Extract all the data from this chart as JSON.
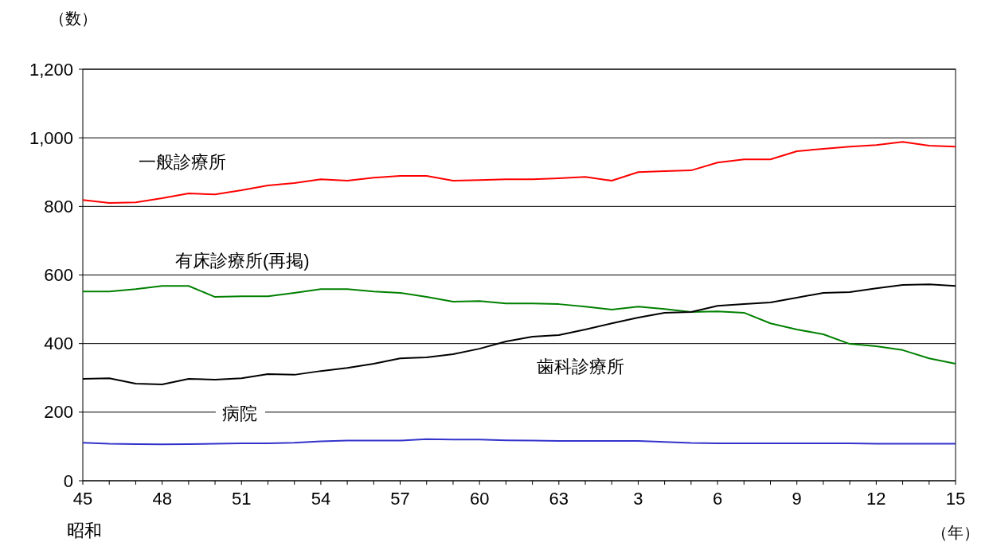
{
  "chart_data": {
    "type": "line",
    "ylabel": "（数）",
    "xlabel": "（年）",
    "annotations": [
      "昭和"
    ],
    "categories": [
      "45",
      null,
      null,
      "48",
      null,
      null,
      "51",
      null,
      null,
      "54",
      null,
      null,
      "57",
      null,
      null,
      "60",
      null,
      null,
      "63",
      null,
      null,
      "3",
      null,
      null,
      "6",
      null,
      null,
      "9",
      null,
      null,
      "12",
      null,
      null,
      "15"
    ],
    "ylim": [
      0,
      1200
    ],
    "yticks": [
      0,
      200,
      400,
      600,
      800,
      {
        "value": 1000,
        "label": "1,000"
      },
      {
        "value": 1200,
        "label": "1,200"
      }
    ],
    "grid": "y",
    "line_style": "solid",
    "series": [
      {
        "name": "一般診療所",
        "color": "#ff0000",
        "values": [
          819,
          810,
          812,
          824,
          838,
          835,
          847,
          861,
          868,
          879,
          875,
          884,
          889,
          889,
          875,
          877,
          879,
          879,
          882,
          886,
          875,
          900,
          903,
          905,
          928,
          937,
          937,
          961,
          968,
          974,
          979,
          988,
          977,
          974
        ]
      },
      {
        "name": "有床診療所(再掲)",
        "color": "#008000",
        "values": [
          552,
          552,
          559,
          568,
          568,
          536,
          538,
          538,
          548,
          559,
          559,
          552,
          548,
          536,
          522,
          524,
          517,
          517,
          515,
          508,
          499,
          508,
          501,
          492,
          494,
          490,
          459,
          441,
          427,
          399,
          392,
          381,
          357,
          341
        ]
      },
      {
        "name": "歯科診療所",
        "color": "#000000",
        "values": [
          297,
          299,
          283,
          281,
          297,
          295,
          299,
          311,
          309,
          320,
          329,
          341,
          357,
          360,
          369,
          385,
          406,
          420,
          425,
          441,
          459,
          476,
          490,
          492,
          510,
          515,
          520,
          534,
          548,
          550,
          561,
          571,
          573,
          568
        ]
      },
      {
        "name": "病院",
        "color": "#3333cc",
        "values": [
          111,
          108,
          107,
          106,
          107,
          108,
          109,
          109,
          111,
          115,
          117,
          117,
          117,
          121,
          120,
          120,
          118,
          117,
          116,
          116,
          116,
          116,
          113,
          110,
          109,
          109,
          109,
          109,
          109,
          109,
          108,
          108,
          108,
          108
        ]
      }
    ]
  }
}
